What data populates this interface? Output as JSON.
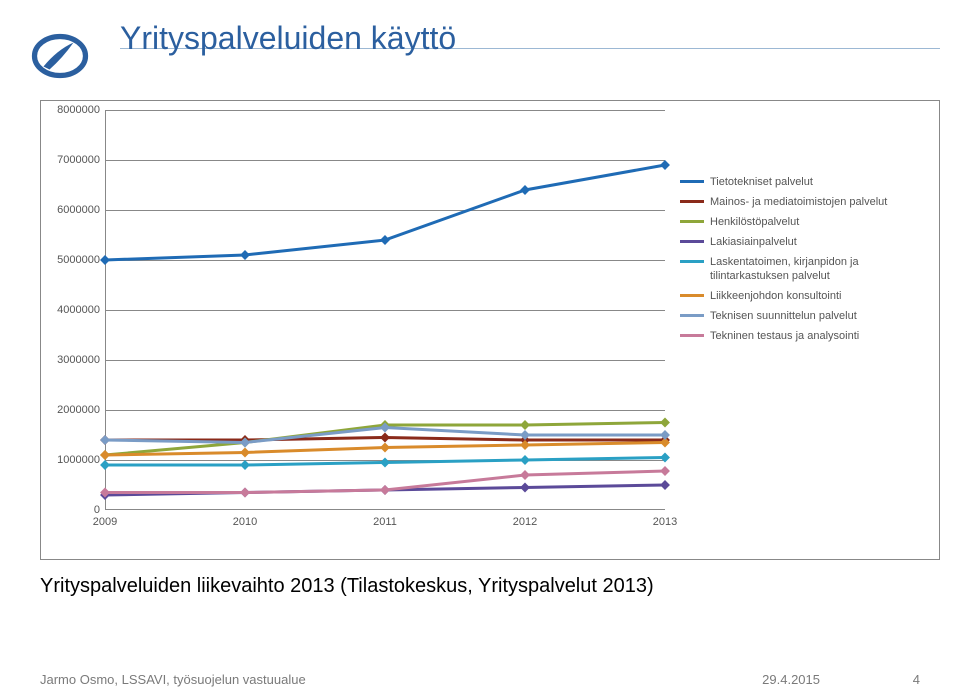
{
  "title": "Yrityspalveluiden käyttö",
  "caption": "Yrityspalveluiden liikevaihto 2013 (Tilastokeskus, Yrityspalvelut 2013)",
  "footer": {
    "author": "Jarmo Osmo, LSSAVI, työsuojelun vastuualue",
    "date": "29.4.2015",
    "page": "4"
  },
  "chart": {
    "type": "line",
    "xlim": [
      2009,
      2013
    ],
    "ylim": [
      0,
      8000000
    ],
    "ytick_step": 1000000,
    "yticks": [
      "0",
      "1000000",
      "2000000",
      "3000000",
      "4000000",
      "5000000",
      "6000000",
      "7000000",
      "8000000"
    ],
    "xticks": [
      "2009",
      "2010",
      "2011",
      "2012",
      "2013"
    ],
    "years": [
      2009,
      2010,
      2011,
      2012,
      2013
    ],
    "line_width": 3,
    "marker_size": 7,
    "background_color": "#ffffff",
    "grid_color": "#888888",
    "axis_color": "#888888",
    "tick_fontsize": 11,
    "tick_color": "#555555",
    "title_fontsize": 32,
    "title_color": "#2b5f9f",
    "series": [
      {
        "name": "Tietotekniset palvelut",
        "color": "#1f6bb5",
        "values": [
          5000000,
          5100000,
          5400000,
          6400000,
          6900000
        ]
      },
      {
        "name": "Mainos- ja mediatoimistojen palvelut",
        "color": "#8a2a1a",
        "values": [
          1400000,
          1400000,
          1450000,
          1400000,
          1400000
        ]
      },
      {
        "name": "Henkilöstöpalvelut",
        "color": "#8ea63a",
        "values": [
          1100000,
          1350000,
          1700000,
          1700000,
          1750000
        ]
      },
      {
        "name": "Lakiasiainpalvelut",
        "color": "#5b4a99",
        "values": [
          300000,
          350000,
          400000,
          450000,
          500000
        ]
      },
      {
        "name": "Laskentatoimen, kirjanpidon ja tilintarkastuksen palvelut",
        "color": "#2aa0c4",
        "values": [
          900000,
          900000,
          950000,
          1000000,
          1050000
        ]
      },
      {
        "name": "Liikkeenjohdon konsultointi",
        "color": "#d98b2b",
        "values": [
          1100000,
          1150000,
          1250000,
          1300000,
          1350000
        ]
      },
      {
        "name": "Teknisen suunnittelun palvelut",
        "color": "#7a9cc6",
        "values": [
          1400000,
          1350000,
          1650000,
          1500000,
          1500000
        ]
      },
      {
        "name": "Tekninen testaus ja analysointi",
        "color": "#c77a9a",
        "values": [
          350000,
          350000,
          400000,
          700000,
          780000
        ]
      }
    ]
  }
}
